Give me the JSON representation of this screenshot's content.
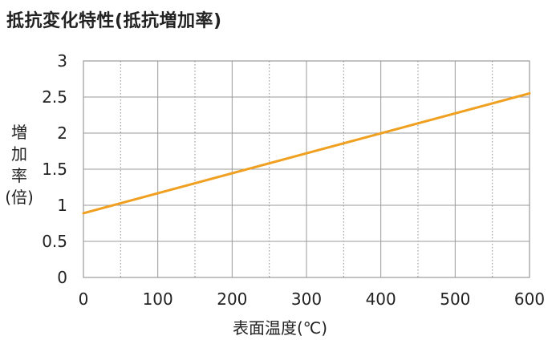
{
  "chart_data": {
    "type": "line",
    "title": "抵抗変化特性(抵抗増加率)",
    "xlabel": "表面温度(℃)",
    "ylabel": [
      "増",
      "加",
      "率",
      "(倍)"
    ],
    "xlim": [
      0,
      600
    ],
    "ylim": [
      0,
      3
    ],
    "x_ticks": [
      "0",
      "100",
      "200",
      "300",
      "400",
      "500",
      "600"
    ],
    "y_ticks": [
      "0",
      "0.5",
      "1",
      "1.5",
      "2",
      "2.5",
      "3"
    ],
    "grid": true,
    "legend": "none",
    "line_color": "#f0a020",
    "series": [
      {
        "x": [
          0,
          600
        ],
        "values": [
          0.89,
          2.55
        ]
      }
    ]
  }
}
